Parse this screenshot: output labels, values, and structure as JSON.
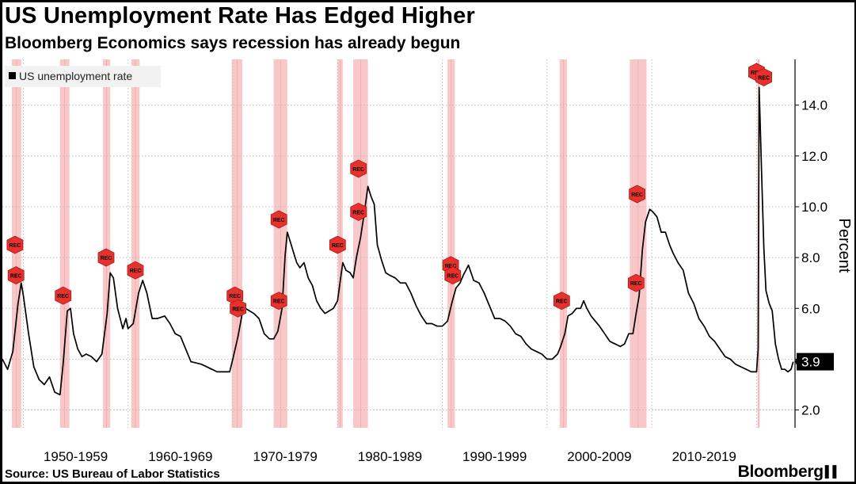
{
  "header": {
    "title": "US Unemployment Rate Has Edged Higher",
    "subtitle": "Bloomberg Economics says recession has already begun"
  },
  "footer": {
    "source": "Source: US Bureau of Labor Statistics",
    "brand": "Bloomberg",
    "brand_mark": "▌▌"
  },
  "colors": {
    "series": "#000000",
    "recession_band": "#f8c8c8",
    "rec_marker": "#e8302c",
    "grid": "#bbbbbb",
    "last_value_box": "#000000"
  },
  "chart_data": {
    "type": "line",
    "title": "US Unemployment Rate Has Edged Higher",
    "subtitle": "Bloomberg Economics says recession has already begun",
    "legend": [
      "US unemployment rate"
    ],
    "legend_placement": "top-left",
    "ylabel": "Percent",
    "xlabel": "",
    "ylim": [
      1.3,
      15.8
    ],
    "xlim": [
      1948.0,
      2023.6
    ],
    "yticks": [
      2.0,
      6.0,
      8.0,
      10.0,
      12.0,
      14.0
    ],
    "ytick_labels": [
      "2.0",
      "6.0",
      "8.0",
      "10.0",
      "12.0",
      "14.0"
    ],
    "hidden_tick_value": 4.0,
    "last_value_label": "3.9",
    "last_value": 3.9,
    "grid": true,
    "decade_labels": [
      {
        "label": "1950-1959",
        "x": 1955.0
      },
      {
        "label": "1960-1969",
        "x": 1965.0
      },
      {
        "label": "1970-1979",
        "x": 1975.0
      },
      {
        "label": "1980-1989",
        "x": 1985.0
      },
      {
        "label": "1990-1999",
        "x": 1995.0
      },
      {
        "label": "2000-2009",
        "x": 2005.0
      },
      {
        "label": "2010-2019",
        "x": 2015.0
      }
    ],
    "recessions": [
      [
        1948.9,
        1949.8
      ],
      [
        1953.5,
        1954.4
      ],
      [
        1957.6,
        1958.3
      ],
      [
        1960.3,
        1961.1
      ],
      [
        1969.9,
        1970.9
      ],
      [
        1973.9,
        1975.2
      ],
      [
        1980.0,
        1980.5
      ],
      [
        1981.5,
        1982.9
      ],
      [
        1990.5,
        1991.2
      ],
      [
        2001.2,
        2001.9
      ],
      [
        2007.9,
        2009.5
      ],
      [
        2020.1,
        2020.3
      ]
    ],
    "rec_label": "REC",
    "rec_markers": [
      [
        1949.2,
        8.5
      ],
      [
        1949.3,
        7.3
      ],
      [
        1953.8,
        6.5
      ],
      [
        1957.9,
        8.0
      ],
      [
        1960.7,
        7.5
      ],
      [
        1970.2,
        6.5
      ],
      [
        1970.5,
        6.0
      ],
      [
        1974.4,
        9.5
      ],
      [
        1974.4,
        6.3
      ],
      [
        1980.0,
        8.5
      ],
      [
        1982.0,
        11.5
      ],
      [
        1982.0,
        9.8
      ],
      [
        1990.8,
        7.7
      ],
      [
        1991.0,
        7.3
      ],
      [
        2001.4,
        6.3
      ],
      [
        2008.6,
        10.5
      ],
      [
        2008.5,
        7.0
      ],
      [
        2020.0,
        15.3
      ],
      [
        2020.7,
        15.1
      ]
    ],
    "series": [
      {
        "name": "US unemployment rate",
        "x": [
          1948.0,
          1948.5,
          1949.0,
          1949.5,
          1949.8,
          1950.0,
          1950.5,
          1951.0,
          1951.5,
          1952.0,
          1952.5,
          1953.0,
          1953.5,
          1953.8,
          1954.2,
          1954.5,
          1954.8,
          1955.2,
          1955.6,
          1956.0,
          1956.5,
          1957.0,
          1957.5,
          1958.0,
          1958.3,
          1958.6,
          1959.0,
          1959.5,
          1959.8,
          1960.0,
          1960.5,
          1961.0,
          1961.4,
          1961.8,
          1962.3,
          1962.8,
          1963.5,
          1964.0,
          1964.5,
          1965.0,
          1965.5,
          1966.0,
          1967.0,
          1968.0,
          1968.5,
          1969.0,
          1969.7,
          1970.0,
          1970.5,
          1970.9,
          1971.2,
          1971.6,
          1972.0,
          1972.5,
          1973.0,
          1973.5,
          1973.9,
          1974.3,
          1974.7,
          1975.0,
          1975.2,
          1975.5,
          1975.8,
          1976.1,
          1976.4,
          1976.8,
          1977.2,
          1977.6,
          1978.0,
          1978.4,
          1978.8,
          1979.2,
          1979.6,
          1980.0,
          1980.3,
          1980.5,
          1980.8,
          1981.2,
          1981.5,
          1981.8,
          1982.2,
          1982.6,
          1982.9,
          1983.2,
          1983.5,
          1983.8,
          1984.2,
          1984.6,
          1985.0,
          1985.5,
          1986.0,
          1986.5,
          1987.0,
          1987.5,
          1988.0,
          1988.5,
          1989.0,
          1989.5,
          1990.0,
          1990.5,
          1990.9,
          1991.3,
          1991.7,
          1992.0,
          1992.5,
          1993.0,
          1993.5,
          1994.0,
          1994.5,
          1995.0,
          1995.5,
          1996.0,
          1996.5,
          1997.0,
          1997.5,
          1998.0,
          1998.5,
          1999.0,
          1999.5,
          2000.0,
          2000.5,
          2001.0,
          2001.3,
          2001.7,
          2002.0,
          2002.4,
          2002.8,
          2003.2,
          2003.5,
          2003.8,
          2004.2,
          2004.6,
          2005.0,
          2005.5,
          2006.0,
          2006.5,
          2007.0,
          2007.4,
          2007.8,
          2008.2,
          2008.5,
          2008.8,
          2009.1,
          2009.4,
          2009.8,
          2010.1,
          2010.5,
          2010.9,
          2011.3,
          2011.7,
          2012.0,
          2012.5,
          2013.0,
          2013.5,
          2014.0,
          2014.5,
          2015.0,
          2015.5,
          2016.0,
          2016.5,
          2017.0,
          2017.5,
          2018.0,
          2018.5,
          2019.0,
          2019.5,
          2020.0,
          2020.15,
          2020.25,
          2020.35,
          2020.5,
          2020.7,
          2020.9,
          2021.2,
          2021.5,
          2021.8,
          2022.1,
          2022.4,
          2022.7,
          2023.0,
          2023.3,
          2023.5
        ],
        "y": [
          4.0,
          3.6,
          4.3,
          6.2,
          7.0,
          6.5,
          5.0,
          3.7,
          3.2,
          3.0,
          3.3,
          2.7,
          2.6,
          3.8,
          5.9,
          6.0,
          5.0,
          4.4,
          4.1,
          4.2,
          4.1,
          3.9,
          4.2,
          5.8,
          7.4,
          7.2,
          6.0,
          5.2,
          5.6,
          5.2,
          5.4,
          6.6,
          7.1,
          6.6,
          5.6,
          5.6,
          5.7,
          5.4,
          5.0,
          4.9,
          4.4,
          3.9,
          3.8,
          3.6,
          3.5,
          3.5,
          3.5,
          4.0,
          4.9,
          5.8,
          6.0,
          5.9,
          5.8,
          5.6,
          5.0,
          4.8,
          4.8,
          5.1,
          6.0,
          8.1,
          9.0,
          8.6,
          8.2,
          7.8,
          7.6,
          7.8,
          7.2,
          6.9,
          6.3,
          6.0,
          5.8,
          5.9,
          6.0,
          6.3,
          7.2,
          7.8,
          7.5,
          7.4,
          7.2,
          8.0,
          8.8,
          9.9,
          10.8,
          10.4,
          10.1,
          8.5,
          7.9,
          7.4,
          7.3,
          7.2,
          7.0,
          7.0,
          6.6,
          6.1,
          5.7,
          5.4,
          5.4,
          5.3,
          5.3,
          5.5,
          6.2,
          6.8,
          7.0,
          7.3,
          7.7,
          7.1,
          7.0,
          6.6,
          6.1,
          5.6,
          5.6,
          5.5,
          5.3,
          5.0,
          4.9,
          4.6,
          4.4,
          4.3,
          4.2,
          4.0,
          4.0,
          4.2,
          4.5,
          5.0,
          5.7,
          5.8,
          6.0,
          6.0,
          6.3,
          6.0,
          5.7,
          5.5,
          5.3,
          5.0,
          4.7,
          4.6,
          4.5,
          4.6,
          5.0,
          5.0,
          5.8,
          6.5,
          8.3,
          9.4,
          9.9,
          9.8,
          9.6,
          9.0,
          9.0,
          8.5,
          8.2,
          7.8,
          7.5,
          6.6,
          6.2,
          5.6,
          5.3,
          4.9,
          4.7,
          4.4,
          4.1,
          4.0,
          3.8,
          3.7,
          3.6,
          3.5,
          3.5,
          4.4,
          14.7,
          13.3,
          11.1,
          8.4,
          6.7,
          6.2,
          5.9,
          4.6,
          4.0,
          3.6,
          3.6,
          3.5,
          3.6,
          3.9
        ]
      }
    ]
  }
}
